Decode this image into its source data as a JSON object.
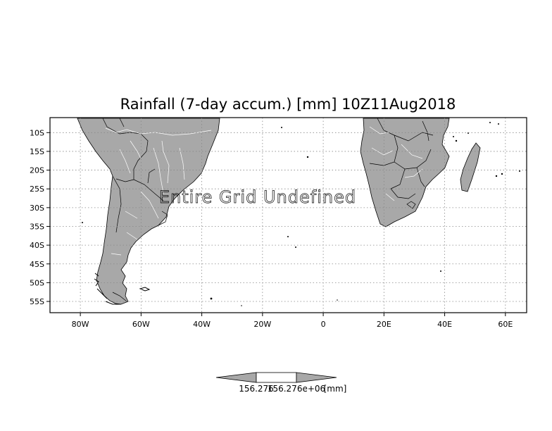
{
  "title": "Rainfall (7-day accum.) [mm] 10Z11Aug2018",
  "overlay_message": "Entire Grid Undefined",
  "axes": {
    "lon_labels": [
      "80W",
      "60W",
      "40W",
      "20W",
      "0",
      "20E",
      "40E",
      "60E"
    ],
    "lat_labels": [
      "10S",
      "15S",
      "20S",
      "25S",
      "30S",
      "35S",
      "40S",
      "45S",
      "50S",
      "55S"
    ],
    "lon_range": [
      -90,
      67
    ],
    "lat_range": [
      -58,
      -6
    ],
    "grid": "dotted"
  },
  "colorbar": {
    "label_left": "156.276",
    "label_center": "156.276e+06",
    "unit": "[mm]"
  },
  "colors": {
    "land": "#a8a8a8",
    "border": "#000000",
    "rivers": "#ffffff",
    "grid": "#888888"
  }
}
